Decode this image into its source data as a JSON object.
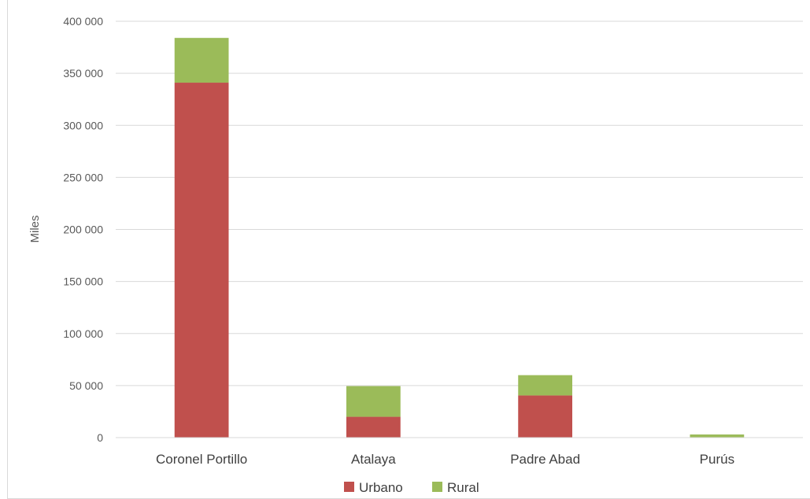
{
  "chart_data": {
    "type": "bar",
    "stacked": true,
    "categories": [
      "Coronel Portillo",
      "Atalaya",
      "Padre Abad",
      "Purús"
    ],
    "series": [
      {
        "name": "Urbano",
        "values": [
          341000,
          20000,
          40500,
          0
        ],
        "color": "#c0504d"
      },
      {
        "name": "Rural",
        "values": [
          43000,
          29500,
          19500,
          3000
        ],
        "color": "#9bbb59"
      }
    ],
    "title": "",
    "xlabel": "",
    "ylabel": "Miles",
    "ylim": [
      0,
      400000
    ],
    "yticks": [
      0,
      50000,
      100000,
      150000,
      200000,
      250000,
      300000,
      350000,
      400000
    ],
    "ytick_labels": [
      "0",
      "50 000",
      "100 000",
      "150 000",
      "200 000",
      "250 000",
      "300 000",
      "350 000",
      "400 000"
    ],
    "grid": true,
    "legend_position": "bottom"
  }
}
